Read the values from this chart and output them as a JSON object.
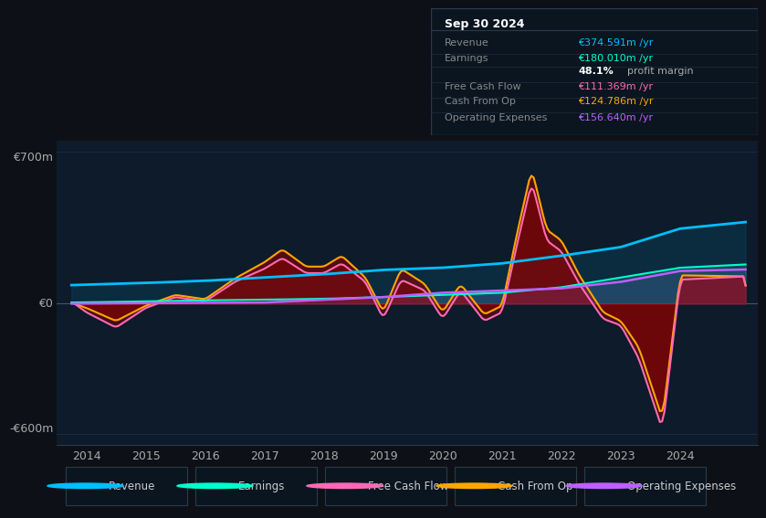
{
  "bg_color": "#0d1117",
  "chart_bg": "#0d1b2a",
  "grid_color": "#1e2d40",
  "zero_line_color": "#4a5568",
  "ylabel_700": "€700m",
  "ylabel_0": "€0",
  "ylabel_neg600": "-€600m",
  "ylim": [
    -650,
    750
  ],
  "xlim": [
    2013.5,
    2025.3
  ],
  "xticks": [
    2014,
    2015,
    2016,
    2017,
    2018,
    2019,
    2020,
    2021,
    2022,
    2023,
    2024
  ],
  "legend_items": [
    {
      "label": "Revenue",
      "color": "#00bfff"
    },
    {
      "label": "Earnings",
      "color": "#00ffcc"
    },
    {
      "label": "Free Cash Flow",
      "color": "#ff69b4"
    },
    {
      "label": "Cash From Op",
      "color": "#ffa500"
    },
    {
      "label": "Operating Expenses",
      "color": "#bf5fff"
    }
  ],
  "info_box": {
    "date": "Sep 30 2024",
    "rows": [
      {
        "label": "Revenue",
        "value": "€374.591m /yr",
        "color": "#00bfff"
      },
      {
        "label": "Earnings",
        "value": "€180.010m /yr",
        "color": "#00ffcc"
      },
      {
        "label": "",
        "value": "48.1% profit margin",
        "color": "#ffffff"
      },
      {
        "label": "Free Cash Flow",
        "value": "€111.369m /yr",
        "color": "#ff69b4"
      },
      {
        "label": "Cash From Op",
        "value": "€124.786m /yr",
        "color": "#ffa500"
      },
      {
        "label": "Operating Expenses",
        "value": "€156.640m /yr",
        "color": "#bf5fff"
      }
    ]
  },
  "revenue_color": "#00bfff",
  "earnings_color": "#00ffcc",
  "fcf_color": "#ff69b4",
  "cashfromop_color": "#ffa500",
  "opex_color": "#bf5fff",
  "dark_red": "#8B0000"
}
